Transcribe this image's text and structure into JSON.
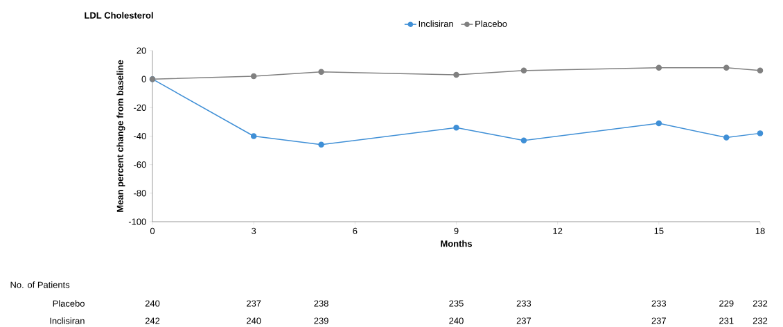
{
  "chart_data": {
    "type": "line",
    "title": "LDL Cholesterol",
    "xlabel": "Months",
    "ylabel": "Mean percent change from baseline",
    "x": [
      0,
      3,
      5,
      9,
      11,
      15,
      17,
      18
    ],
    "series": [
      {
        "name": "Inclisiran",
        "color": "#3f8fd6",
        "values": [
          0,
          -40,
          -46,
          -34,
          -43,
          -31,
          -41,
          -38
        ]
      },
      {
        "name": "Placebo",
        "color": "#808080",
        "values": [
          0,
          2,
          5,
          3,
          6,
          8,
          8,
          6
        ]
      }
    ],
    "xlim": [
      0,
      18
    ],
    "ylim": [
      -100,
      20
    ],
    "xticks": [
      0,
      3,
      6,
      9,
      12,
      15,
      18
    ],
    "yticks": [
      -100,
      -80,
      -60,
      -40,
      -20,
      0,
      20
    ],
    "legend": "top",
    "marker": "circle",
    "annotations": [
      "No. of Patients",
      "Placebo",
      "240",
      "237",
      "238",
      "235",
      "233",
      "233",
      "229",
      "232",
      "Inclisiran",
      "242",
      "240",
      "239",
      "240",
      "237",
      "237",
      "231",
      "232"
    ]
  }
}
